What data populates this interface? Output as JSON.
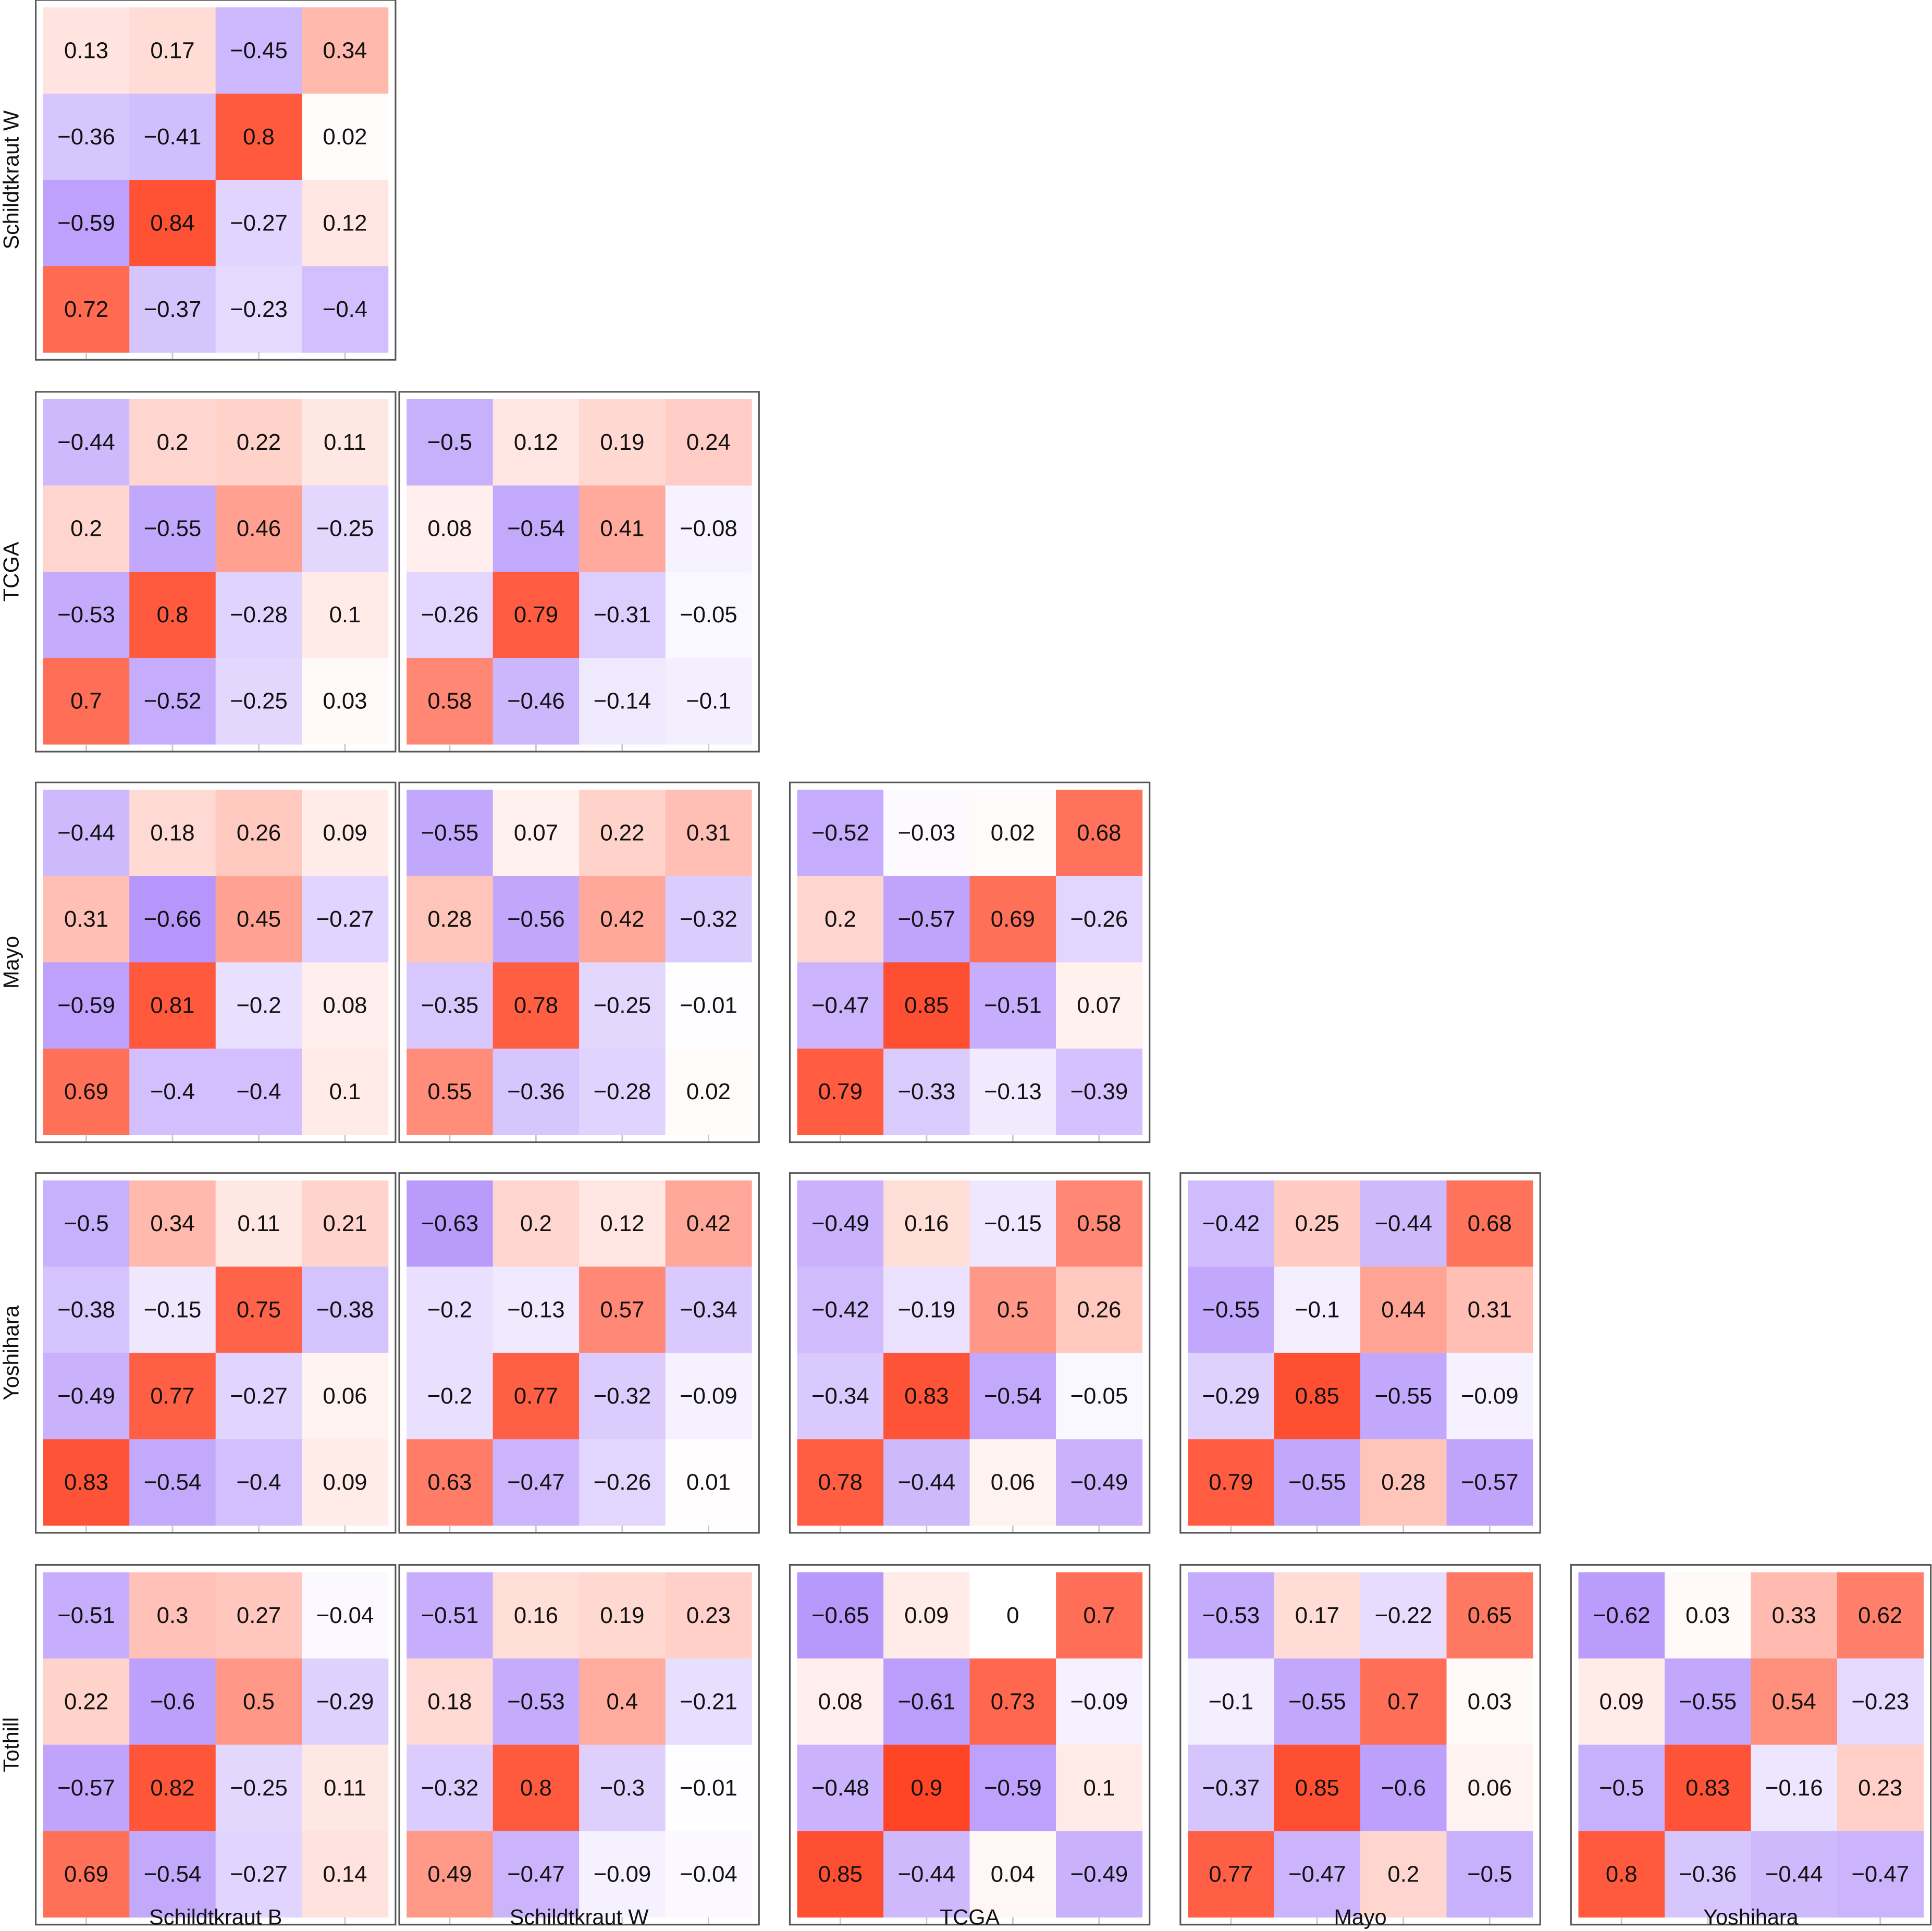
{
  "figure": {
    "color_scale": {
      "negative": "#9b70fa",
      "zero": "#ffffff",
      "positive": "#ff4526",
      "max_abs": 0.9
    },
    "row_labels": [
      "Schildtkraut W",
      "TCGA",
      "Mayo",
      "Yoshihara",
      "Tothill"
    ],
    "column_labels": [
      "Schildtkraut B",
      "Schildtkraut W",
      "TCGA",
      "Mayo",
      "Yoshihara"
    ]
  },
  "chart_data": [
    {
      "type": "heatmap",
      "row": "Schildtkraut W",
      "column": "Schildtkraut B",
      "values": [
        [
          0.13,
          0.17,
          -0.45,
          0.34
        ],
        [
          -0.36,
          -0.41,
          0.8,
          0.02
        ],
        [
          -0.59,
          0.84,
          -0.27,
          0.12
        ],
        [
          0.72,
          -0.37,
          -0.23,
          -0.4
        ]
      ],
      "labels": [
        [
          "0.13",
          "0.17",
          "−0.45",
          "0.34"
        ],
        [
          "−0.36",
          "−0.41",
          "0.8",
          "0.02"
        ],
        [
          "−0.59",
          "0.84",
          "−0.27",
          "0.12"
        ],
        [
          "0.72",
          "−0.37",
          "−0.23",
          "−0.4"
        ]
      ]
    },
    {
      "type": "heatmap",
      "row": "TCGA",
      "column": "Schildtkraut B",
      "values": [
        [
          -0.44,
          0.2,
          0.22,
          0.11
        ],
        [
          0.2,
          -0.55,
          0.46,
          -0.25
        ],
        [
          -0.53,
          0.8,
          -0.28,
          0.1
        ],
        [
          0.7,
          -0.52,
          -0.25,
          0.03
        ]
      ],
      "labels": [
        [
          "−0.44",
          "0.2",
          "0.22",
          "0.11"
        ],
        [
          "0.2",
          "−0.55",
          "0.46",
          "−0.25"
        ],
        [
          "−0.53",
          "0.8",
          "−0.28",
          "0.1"
        ],
        [
          "0.7",
          "−0.52",
          "−0.25",
          "0.03"
        ]
      ]
    },
    {
      "type": "heatmap",
      "row": "TCGA",
      "column": "Schildtkraut W",
      "values": [
        [
          -0.5,
          0.12,
          0.19,
          0.24
        ],
        [
          0.08,
          -0.54,
          0.41,
          -0.08
        ],
        [
          -0.26,
          0.79,
          -0.31,
          -0.05
        ],
        [
          0.58,
          -0.46,
          -0.14,
          -0.1
        ]
      ],
      "labels": [
        [
          "−0.5",
          "0.12",
          "0.19",
          "0.24"
        ],
        [
          "0.08",
          "−0.54",
          "0.41",
          "−0.08"
        ],
        [
          "−0.26",
          "0.79",
          "−0.31",
          "−0.05"
        ],
        [
          "0.58",
          "−0.46",
          "−0.14",
          "−0.1"
        ]
      ]
    },
    {
      "type": "heatmap",
      "row": "Mayo",
      "column": "Schildtkraut B",
      "values": [
        [
          -0.44,
          0.18,
          0.26,
          0.09
        ],
        [
          0.31,
          -0.66,
          0.45,
          -0.27
        ],
        [
          -0.59,
          0.81,
          -0.2,
          0.08
        ],
        [
          0.69,
          -0.4,
          -0.4,
          0.1
        ]
      ],
      "labels": [
        [
          "−0.44",
          "0.18",
          "0.26",
          "0.09"
        ],
        [
          "0.31",
          "−0.66",
          "0.45",
          "−0.27"
        ],
        [
          "−0.59",
          "0.81",
          "−0.2",
          "0.08"
        ],
        [
          "0.69",
          "−0.4",
          "−0.4",
          "0.1"
        ]
      ]
    },
    {
      "type": "heatmap",
      "row": "Mayo",
      "column": "Schildtkraut W",
      "values": [
        [
          -0.55,
          0.07,
          0.22,
          0.31
        ],
        [
          0.28,
          -0.56,
          0.42,
          -0.32
        ],
        [
          -0.35,
          0.78,
          -0.25,
          -0.01
        ],
        [
          0.55,
          -0.36,
          -0.28,
          0.02
        ]
      ],
      "labels": [
        [
          "−0.55",
          "0.07",
          "0.22",
          "0.31"
        ],
        [
          "0.28",
          "−0.56",
          "0.42",
          "−0.32"
        ],
        [
          "−0.35",
          "0.78",
          "−0.25",
          "−0.01"
        ],
        [
          "0.55",
          "−0.36",
          "−0.28",
          "0.02"
        ]
      ]
    },
    {
      "type": "heatmap",
      "row": "Mayo",
      "column": "TCGA",
      "values": [
        [
          -0.52,
          -0.03,
          0.02,
          0.68
        ],
        [
          0.2,
          -0.57,
          0.69,
          -0.26
        ],
        [
          -0.47,
          0.85,
          -0.51,
          0.07
        ],
        [
          0.79,
          -0.33,
          -0.13,
          -0.39
        ]
      ],
      "labels": [
        [
          "−0.52",
          "−0.03",
          "0.02",
          "0.68"
        ],
        [
          "0.2",
          "−0.57",
          "0.69",
          "−0.26"
        ],
        [
          "−0.47",
          "0.85",
          "−0.51",
          "0.07"
        ],
        [
          "0.79",
          "−0.33",
          "−0.13",
          "−0.39"
        ]
      ]
    },
    {
      "type": "heatmap",
      "row": "Yoshihara",
      "column": "Schildtkraut B",
      "values": [
        [
          -0.5,
          0.34,
          0.11,
          0.21
        ],
        [
          -0.38,
          -0.15,
          0.75,
          -0.38
        ],
        [
          -0.49,
          0.77,
          -0.27,
          0.06
        ],
        [
          0.83,
          -0.54,
          -0.4,
          0.09
        ]
      ],
      "labels": [
        [
          "−0.5",
          "0.34",
          "0.11",
          "0.21"
        ],
        [
          "−0.38",
          "−0.15",
          "0.75",
          "−0.38"
        ],
        [
          "−0.49",
          "0.77",
          "−0.27",
          "0.06"
        ],
        [
          "0.83",
          "−0.54",
          "−0.4",
          "0.09"
        ]
      ]
    },
    {
      "type": "heatmap",
      "row": "Yoshihara",
      "column": "Schildtkraut W",
      "values": [
        [
          -0.63,
          0.2,
          0.12,
          0.42
        ],
        [
          -0.2,
          -0.13,
          0.57,
          -0.34
        ],
        [
          -0.2,
          0.77,
          -0.32,
          -0.09
        ],
        [
          0.63,
          -0.47,
          -0.26,
          0.01
        ]
      ],
      "labels": [
        [
          "−0.63",
          "0.2",
          "0.12",
          "0.42"
        ],
        [
          "−0.2",
          "−0.13",
          "0.57",
          "−0.34"
        ],
        [
          "−0.2",
          "0.77",
          "−0.32",
          "−0.09"
        ],
        [
          "0.63",
          "−0.47",
          "−0.26",
          "0.01"
        ]
      ]
    },
    {
      "type": "heatmap",
      "row": "Yoshihara",
      "column": "TCGA",
      "values": [
        [
          -0.49,
          0.16,
          -0.15,
          0.58
        ],
        [
          -0.42,
          -0.19,
          0.5,
          0.26
        ],
        [
          -0.34,
          0.83,
          -0.54,
          -0.05
        ],
        [
          0.78,
          -0.44,
          0.06,
          -0.49
        ]
      ],
      "labels": [
        [
          "−0.49",
          "0.16",
          "−0.15",
          "0.58"
        ],
        [
          "−0.42",
          "−0.19",
          "0.5",
          "0.26"
        ],
        [
          "−0.34",
          "0.83",
          "−0.54",
          "−0.05"
        ],
        [
          "0.78",
          "−0.44",
          "0.06",
          "−0.49"
        ]
      ]
    },
    {
      "type": "heatmap",
      "row": "Yoshihara",
      "column": "Mayo",
      "values": [
        [
          -0.42,
          0.25,
          -0.44,
          0.68
        ],
        [
          -0.55,
          -0.1,
          0.44,
          0.31
        ],
        [
          -0.29,
          0.85,
          -0.55,
          -0.09
        ],
        [
          0.79,
          -0.55,
          0.28,
          -0.57
        ]
      ],
      "labels": [
        [
          "−0.42",
          "0.25",
          "−0.44",
          "0.68"
        ],
        [
          "−0.55",
          "−0.1",
          "0.44",
          "0.31"
        ],
        [
          "−0.29",
          "0.85",
          "−0.55",
          "−0.09"
        ],
        [
          "0.79",
          "−0.55",
          "0.28",
          "−0.57"
        ]
      ]
    },
    {
      "type": "heatmap",
      "row": "Tothill",
      "column": "Schildtkraut B",
      "values": [
        [
          -0.51,
          0.3,
          0.27,
          -0.04
        ],
        [
          0.22,
          -0.6,
          0.5,
          -0.29
        ],
        [
          -0.57,
          0.82,
          -0.25,
          0.11
        ],
        [
          0.69,
          -0.54,
          -0.27,
          0.14
        ]
      ],
      "labels": [
        [
          "−0.51",
          "0.3",
          "0.27",
          "−0.04"
        ],
        [
          "0.22",
          "−0.6",
          "0.5",
          "−0.29"
        ],
        [
          "−0.57",
          "0.82",
          "−0.25",
          "0.11"
        ],
        [
          "0.69",
          "−0.54",
          "−0.27",
          "0.14"
        ]
      ]
    },
    {
      "type": "heatmap",
      "row": "Tothill",
      "column": "Schildtkraut W",
      "values": [
        [
          -0.51,
          0.16,
          0.19,
          0.23
        ],
        [
          0.18,
          -0.53,
          0.4,
          -0.21
        ],
        [
          -0.32,
          0.8,
          -0.3,
          -0.01
        ],
        [
          0.49,
          -0.47,
          -0.09,
          -0.04
        ]
      ],
      "labels": [
        [
          "−0.51",
          "0.16",
          "0.19",
          "0.23"
        ],
        [
          "0.18",
          "−0.53",
          "0.4",
          "−0.21"
        ],
        [
          "−0.32",
          "0.8",
          "−0.3",
          "−0.01"
        ],
        [
          "0.49",
          "−0.47",
          "−0.09",
          "−0.04"
        ]
      ]
    },
    {
      "type": "heatmap",
      "row": "Tothill",
      "column": "TCGA",
      "values": [
        [
          -0.65,
          0.09,
          0,
          0.7
        ],
        [
          0.08,
          -0.61,
          0.73,
          -0.09
        ],
        [
          -0.48,
          0.9,
          -0.59,
          0.1
        ],
        [
          0.85,
          -0.44,
          0.04,
          -0.49
        ]
      ],
      "labels": [
        [
          "−0.65",
          "0.09",
          "0",
          "0.7"
        ],
        [
          "0.08",
          "−0.61",
          "0.73",
          "−0.09"
        ],
        [
          "−0.48",
          "0.9",
          "−0.59",
          "0.1"
        ],
        [
          "0.85",
          "−0.44",
          "0.04",
          "−0.49"
        ]
      ]
    },
    {
      "type": "heatmap",
      "row": "Tothill",
      "column": "Mayo",
      "values": [
        [
          -0.53,
          0.17,
          -0.22,
          0.65
        ],
        [
          -0.1,
          -0.55,
          0.7,
          0.03
        ],
        [
          -0.37,
          0.85,
          -0.6,
          0.06
        ],
        [
          0.77,
          -0.47,
          0.2,
          -0.5
        ]
      ],
      "labels": [
        [
          "−0.53",
          "0.17",
          "−0.22",
          "0.65"
        ],
        [
          "−0.1",
          "−0.55",
          "0.7",
          "0.03"
        ],
        [
          "−0.37",
          "0.85",
          "−0.6",
          "0.06"
        ],
        [
          "0.77",
          "−0.47",
          "0.2",
          "−0.5"
        ]
      ]
    },
    {
      "type": "heatmap",
      "row": "Tothill",
      "column": "Yoshihara",
      "values": [
        [
          -0.62,
          0.03,
          0.33,
          0.62
        ],
        [
          0.09,
          -0.55,
          0.54,
          -0.23
        ],
        [
          -0.5,
          0.83,
          -0.16,
          0.23
        ],
        [
          0.8,
          -0.36,
          -0.44,
          -0.47
        ]
      ],
      "labels": [
        [
          "−0.62",
          "0.03",
          "0.33",
          "0.62"
        ],
        [
          "0.09",
          "−0.55",
          "0.54",
          "−0.23"
        ],
        [
          "−0.5",
          "0.83",
          "−0.16",
          "0.23"
        ],
        [
          "0.8",
          "−0.36",
          "−0.44",
          "−0.47"
        ]
      ]
    }
  ]
}
